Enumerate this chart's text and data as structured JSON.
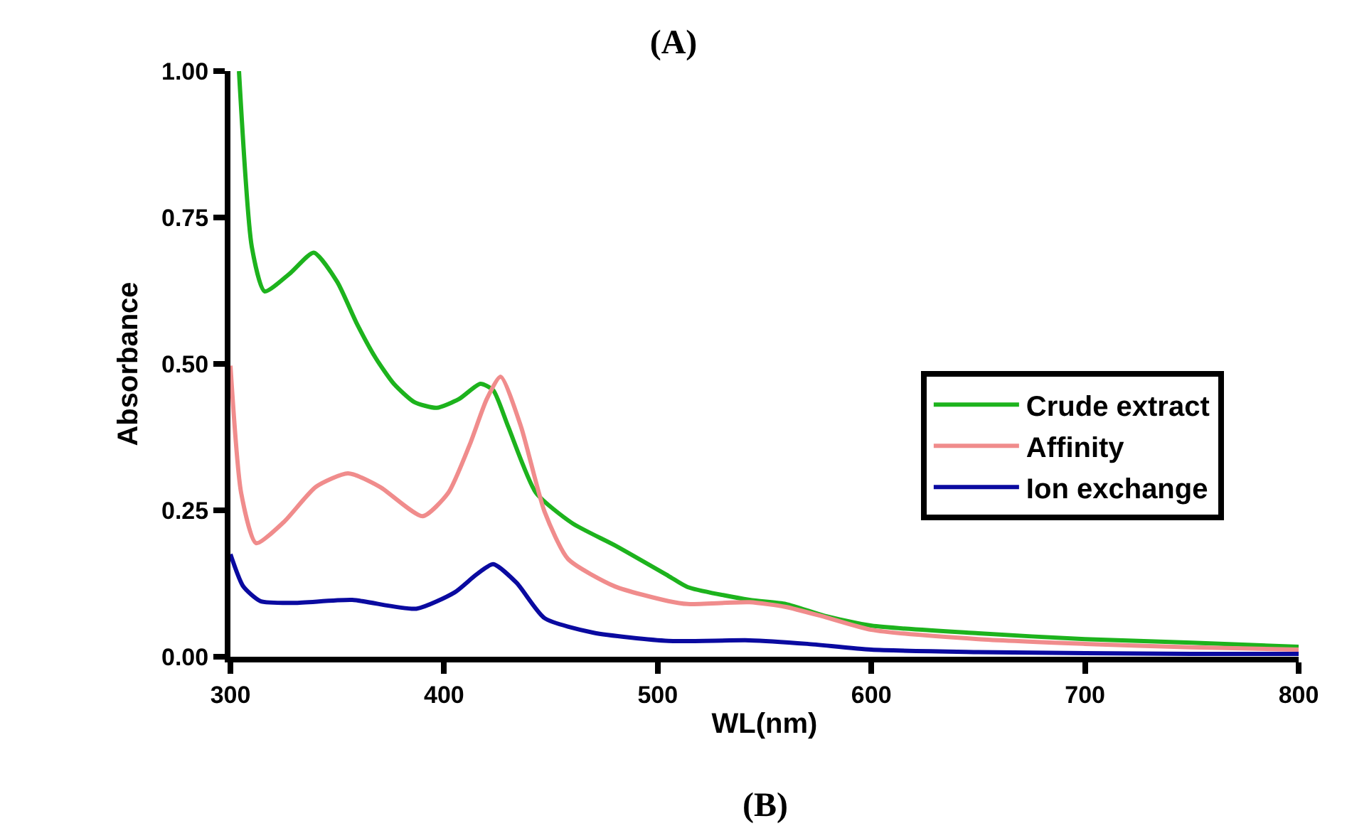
{
  "chart_data": {
    "type": "line",
    "title": "(A)",
    "xlabel": "WL(nm)",
    "ylabel": "Absorbance",
    "annotations": [
      "(B)"
    ],
    "xlim": [
      300,
      800
    ],
    "xticks": [
      300,
      400,
      500,
      600,
      700,
      800
    ],
    "ylim": [
      0,
      1
    ],
    "yticks": [
      {
        "value": 0,
        "label": "0.00"
      },
      {
        "value": 0.25,
        "label": "0.25"
      },
      {
        "value": 0.5,
        "label": "0.50"
      },
      {
        "value": 0.75,
        "label": "0.75"
      },
      {
        "value": 1,
        "label": "1.00"
      }
    ],
    "legend": "right",
    "marker": "none",
    "line_style": "solid",
    "series": [
      {
        "name": "Crude extract",
        "color": "#1db31d",
        "x": [
          304,
          310,
          316,
          328,
          339,
          350,
          359,
          368,
          376.5,
          386,
          396.5,
          407,
          417,
          423,
          430,
          443,
          460,
          480,
          505,
          514,
          543,
          560,
          578,
          600,
          650,
          700,
          750,
          800
        ],
        "values": [
          1.0,
          0.7,
          0.624,
          0.655,
          0.69,
          0.64,
          0.57,
          0.51,
          0.466,
          0.435,
          0.425,
          0.44,
          0.466,
          0.455,
          0.393,
          0.28,
          0.228,
          0.19,
          0.138,
          0.119,
          0.097,
          0.09,
          0.07,
          0.053,
          0.04,
          0.03,
          0.024,
          0.017
        ]
      },
      {
        "name": "Affinity",
        "color": "#f08c8c",
        "x": [
          300,
          305,
          312,
          325,
          340,
          355,
          370,
          390,
          402,
          412,
          420,
          426.5,
          436,
          447,
          458,
          480,
          505,
          514,
          543,
          560,
          578,
          600,
          650,
          700,
          750,
          800
        ],
        "values": [
          0.497,
          0.28,
          0.194,
          0.23,
          0.29,
          0.313,
          0.29,
          0.24,
          0.28,
          0.362,
          0.44,
          0.478,
          0.393,
          0.248,
          0.167,
          0.12,
          0.095,
          0.09,
          0.093,
          0.085,
          0.068,
          0.046,
          0.03,
          0.022,
          0.016,
          0.012
        ]
      },
      {
        "name": "Ion exchange",
        "color": "#0a0aa0",
        "x": [
          300,
          306,
          314,
          330,
          357,
          387,
          405,
          415,
          423,
          434,
          447,
          470,
          505,
          543,
          570,
          600,
          650,
          700,
          750,
          800
        ],
        "values": [
          0.175,
          0.12,
          0.095,
          0.092,
          0.097,
          0.082,
          0.11,
          0.14,
          0.158,
          0.126,
          0.066,
          0.041,
          0.027,
          0.028,
          0.022,
          0.012,
          0.008,
          0.006,
          0.005,
          0.005
        ]
      }
    ]
  }
}
